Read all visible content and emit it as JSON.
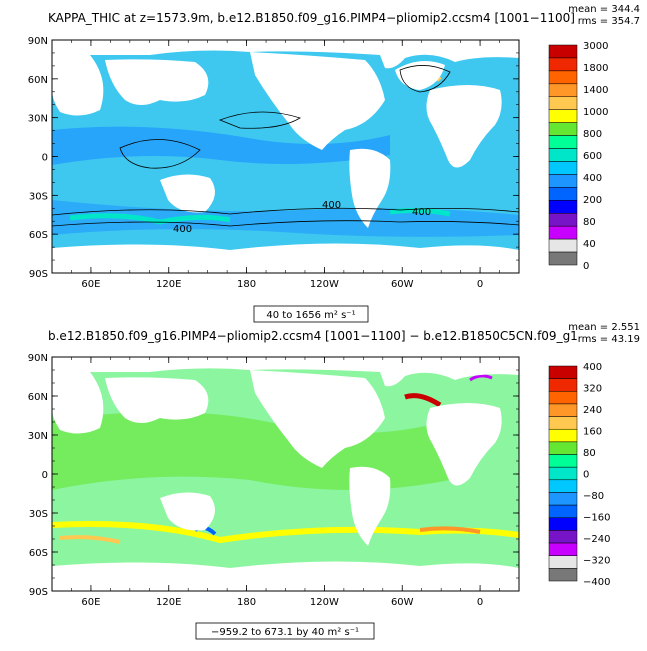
{
  "panels": [
    {
      "title": "KAPPA_THIC at z=1573.9m, b.e12.B1850.f09_g16.PIMP4−pliomip2.ccsm4 [1001−1100]",
      "mean_label": "mean = 344.4",
      "rms_label": "rms = 354.7",
      "range_label": "40 to 1656 m² s⁻¹",
      "lat_ticks": [
        "90N",
        "60N",
        "30N",
        "0",
        "30S",
        "60S",
        "90S"
      ],
      "lon_ticks": [
        "60E",
        "120E",
        "180",
        "120W",
        "60W",
        "0"
      ],
      "colorbar": {
        "labels": [
          "3000",
          "1800",
          "1400",
          "1000",
          "800",
          "600",
          "400",
          "200",
          "80",
          "40",
          "0"
        ],
        "colors": [
          "#c80000",
          "#f02800",
          "#ff6400",
          "#ff9628",
          "#ffc850",
          "#ffff00",
          "#64e632",
          "#00ff96",
          "#00e6c8",
          "#00c8ff",
          "#1e96ff",
          "#0064ff",
          "#0000ff",
          "#7814c8",
          "#c800ff",
          "#e6e6e6",
          "#787878"
        ]
      },
      "contour_labels": [
        "400",
        "400",
        "400"
      ]
    },
    {
      "title": "b.e12.B1850.f09_g16.PIMP4−pliomip2.ccsm4 [1001−1100] − b.e12.B1850C5CN.f09_g1",
      "mean_label": "mean = 2.551",
      "rms_label": "rms = 43.19",
      "range_label": "−959.2 to 673.1 by 40 m² s⁻¹",
      "lat_ticks": [
        "90N",
        "60N",
        "30N",
        "0",
        "30S",
        "60S",
        "90S"
      ],
      "lon_ticks": [
        "60E",
        "120E",
        "180",
        "120W",
        "60W",
        "0"
      ],
      "colorbar": {
        "labels": [
          "400",
          "320",
          "240",
          "160",
          "80",
          "0",
          "−80",
          "−160",
          "−240",
          "−320",
          "−400"
        ],
        "colors": [
          "#c80000",
          "#f02800",
          "#ff6400",
          "#ff9628",
          "#ffc850",
          "#ffff00",
          "#64e632",
          "#00ff96",
          "#00e6c8",
          "#00c8ff",
          "#1e96ff",
          "#0064ff",
          "#0000ff",
          "#7814c8",
          "#c800ff",
          "#e6e6e6",
          "#787878"
        ]
      }
    }
  ],
  "colors": {
    "ocean_top": "#3ec8f0",
    "ocean_band": "#1e96ff",
    "ocean_bottom": "#8cf5a0",
    "ocean_bottom_alt": "#00ff96",
    "land": "#ffffff"
  }
}
